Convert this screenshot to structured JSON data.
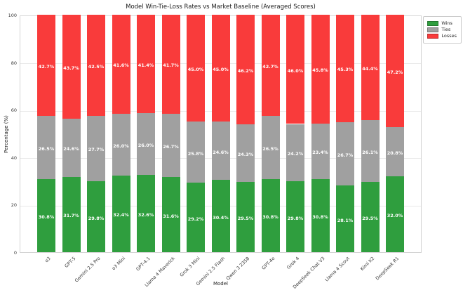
{
  "title": "Model Win-Tie-Loss Rates vs Market Baseline (Averaged Scores)",
  "chart_data": {
    "type": "bar",
    "stacked": true,
    "title": "Model Win-Tie-Loss Rates vs Market Baseline (Averaged Scores)",
    "xlabel": "Model",
    "ylabel": "Percentage (%)",
    "ylim": [
      0,
      100
    ],
    "yticks": [
      0,
      20,
      40,
      60,
      80,
      100
    ],
    "grid": "horizontal",
    "legend_position": "top-right-outside",
    "bar_label_suffix": "%",
    "categories": [
      "o3",
      "GPT-5",
      "Gemini 2.5 Pro",
      "o3 Mini",
      "GPT-4.1",
      "Llama 4 Maverick",
      "Grok 3 Mini",
      "Gemini 2.5 Flash",
      "Qwen 3 235B",
      "GPT-4o",
      "Grok 4",
      "DeepSeek Chat V3",
      "Llama 4 Scout",
      "Kimi K2",
      "DeepSeek R1"
    ],
    "series": [
      {
        "name": "Wins",
        "color": "#2f9e3e",
        "values": [
          30.8,
          31.7,
          29.8,
          32.4,
          32.6,
          31.6,
          29.2,
          30.4,
          29.5,
          30.8,
          29.8,
          30.8,
          28.1,
          29.5,
          32.0
        ]
      },
      {
        "name": "Ties",
        "color": "#a0a0a0",
        "values": [
          26.5,
          24.6,
          27.7,
          26.0,
          26.0,
          26.7,
          25.8,
          24.6,
          24.3,
          26.5,
          24.2,
          23.4,
          26.7,
          26.1,
          20.8
        ]
      },
      {
        "name": "Losses",
        "color": "#f93b3b",
        "values": [
          42.7,
          43.7,
          42.5,
          41.6,
          41.4,
          41.7,
          45.0,
          45.0,
          46.2,
          42.7,
          46.0,
          45.8,
          45.3,
          44.4,
          47.2
        ]
      }
    ]
  }
}
